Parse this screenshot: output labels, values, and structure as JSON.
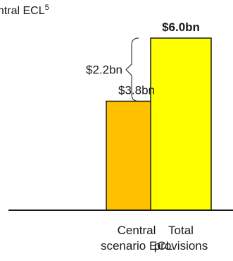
{
  "title": {
    "text": "entral ECL",
    "superscript": "5"
  },
  "chart_data": {
    "type": "bar",
    "categories": [
      [
        "Central",
        "scenario ECL"
      ],
      [
        "Total",
        "provisions"
      ]
    ],
    "values": [
      3.8,
      6.0
    ],
    "data_labels": [
      "$3.8bn",
      "$6.0bn"
    ],
    "data_labels_bold": [
      false,
      true
    ],
    "colors": [
      "#FFC000",
      "#FFFF00"
    ],
    "bracket_label": "$2.2bn",
    "ylim": [
      0,
      6.0
    ]
  }
}
